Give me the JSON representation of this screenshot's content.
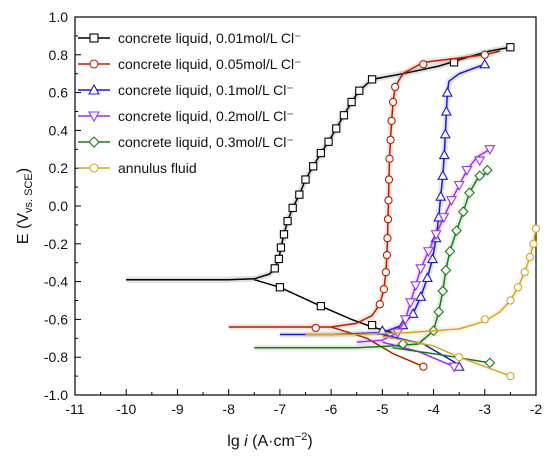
{
  "chart_data": {
    "type": "line",
    "title": "",
    "xlabel": {
      "prefix": "lg ",
      "italic": "i",
      "unit_open": "  (A·cm",
      "unit_sup": "−2",
      "unit_close": ")"
    },
    "ylabel": {
      "main": "E",
      "paren_open": "(V",
      "sub": "vs. SCE",
      "paren_close": ")"
    },
    "xlim": [
      -11,
      -2
    ],
    "ylim": [
      -1.0,
      1.0
    ],
    "xticks": [
      "-11",
      "-10",
      "-9",
      "-8",
      "-7",
      "-6",
      "-5",
      "-4",
      "-3",
      "-2"
    ],
    "yticks": [
      "-1.0",
      "-0.8",
      "-0.6",
      "-0.4",
      "-0.2",
      "0.0",
      "0.2",
      "0.4",
      "0.6",
      "0.8",
      "1.0"
    ],
    "grid": false,
    "legend_position": "top-left",
    "series": [
      {
        "name": "concrete liquid, 0.01mol/L Cl⁻",
        "color": "#000000",
        "marker": "square",
        "points": [
          [
            -10.0,
            -0.39
          ],
          [
            -9.0,
            -0.39
          ],
          [
            -8.0,
            -0.39
          ],
          [
            -7.5,
            -0.385
          ],
          [
            -7.2,
            -0.36
          ],
          [
            -7.1,
            -0.33
          ],
          [
            -7.02,
            -0.28
          ],
          [
            -6.98,
            -0.22
          ],
          [
            -6.92,
            -0.15
          ],
          [
            -6.85,
            -0.08
          ],
          [
            -6.75,
            -0.01
          ],
          [
            -6.62,
            0.06
          ],
          [
            -6.5,
            0.14
          ],
          [
            -6.35,
            0.21
          ],
          [
            -6.2,
            0.28
          ],
          [
            -6.05,
            0.34
          ],
          [
            -5.9,
            0.41
          ],
          [
            -5.75,
            0.48
          ],
          [
            -5.6,
            0.55
          ],
          [
            -5.45,
            0.61
          ],
          [
            -5.2,
            0.67
          ],
          [
            -4.6,
            0.7
          ],
          [
            -3.9,
            0.74
          ],
          [
            -3.3,
            0.79
          ],
          [
            -2.9,
            0.82
          ],
          [
            -2.5,
            0.84
          ]
        ],
        "cathodic": [
          [
            -7.5,
            -0.39
          ],
          [
            -7.0,
            -0.43
          ],
          [
            -6.2,
            -0.53
          ],
          [
            -5.6,
            -0.6
          ],
          [
            -5.2,
            -0.64
          ],
          [
            -4.8,
            -0.67
          ]
        ],
        "marker_points": [
          [
            -7.1,
            -0.33
          ],
          [
            -7.02,
            -0.28
          ],
          [
            -6.98,
            -0.22
          ],
          [
            -6.92,
            -0.15
          ],
          [
            -6.85,
            -0.08
          ],
          [
            -6.75,
            -0.01
          ],
          [
            -6.62,
            0.06
          ],
          [
            -6.5,
            0.14
          ],
          [
            -6.35,
            0.21
          ],
          [
            -6.2,
            0.28
          ],
          [
            -6.05,
            0.34
          ],
          [
            -5.9,
            0.41
          ],
          [
            -5.75,
            0.48
          ],
          [
            -5.6,
            0.55
          ],
          [
            -5.45,
            0.61
          ],
          [
            -5.2,
            0.67
          ],
          [
            -3.6,
            0.76
          ],
          [
            -2.5,
            0.84
          ],
          [
            -7.0,
            -0.43
          ],
          [
            -6.2,
            -0.53
          ],
          [
            -5.2,
            -0.63
          ]
        ]
      },
      {
        "name": "concrete liquid, 0.05mol/L Cl⁻",
        "color": "#b22000",
        "marker": "circle",
        "points": [
          [
            -8.0,
            -0.64
          ],
          [
            -7.0,
            -0.64
          ],
          [
            -6.0,
            -0.64
          ],
          [
            -5.5,
            -0.62
          ],
          [
            -5.2,
            -0.58
          ],
          [
            -5.05,
            -0.52
          ],
          [
            -4.97,
            -0.44
          ],
          [
            -4.93,
            -0.35
          ],
          [
            -4.91,
            -0.26
          ],
          [
            -4.9,
            -0.17
          ],
          [
            -4.89,
            -0.07
          ],
          [
            -4.88,
            0.03
          ],
          [
            -4.87,
            0.14
          ],
          [
            -4.86,
            0.25
          ],
          [
            -4.84,
            0.35
          ],
          [
            -4.82,
            0.45
          ],
          [
            -4.79,
            0.55
          ],
          [
            -4.75,
            0.63
          ],
          [
            -4.6,
            0.7
          ],
          [
            -4.2,
            0.76
          ],
          [
            -3.6,
            0.78
          ],
          [
            -3.0,
            0.8
          ],
          [
            -2.7,
            0.82
          ]
        ],
        "cathodic": [
          [
            -6.0,
            -0.64
          ],
          [
            -5.3,
            -0.7
          ],
          [
            -4.8,
            -0.78
          ],
          [
            -4.2,
            -0.85
          ]
        ],
        "marker_points": [
          [
            -6.3,
            -0.645
          ],
          [
            -5.05,
            -0.52
          ],
          [
            -4.97,
            -0.44
          ],
          [
            -4.93,
            -0.35
          ],
          [
            -4.91,
            -0.26
          ],
          [
            -4.9,
            -0.17
          ],
          [
            -4.89,
            -0.07
          ],
          [
            -4.88,
            0.03
          ],
          [
            -4.87,
            0.14
          ],
          [
            -4.86,
            0.25
          ],
          [
            -4.84,
            0.35
          ],
          [
            -4.82,
            0.45
          ],
          [
            -4.79,
            0.55
          ],
          [
            -4.75,
            0.63
          ],
          [
            -4.2,
            0.75
          ],
          [
            -3.0,
            0.8
          ],
          [
            -4.2,
            -0.85
          ]
        ]
      },
      {
        "name": "concrete liquid, 0.1mol/L Cl⁻",
        "color": "#1a1acc",
        "marker": "triangle-up",
        "points": [
          [
            -7.0,
            -0.68
          ],
          [
            -6.0,
            -0.68
          ],
          [
            -5.0,
            -0.67
          ],
          [
            -4.6,
            -0.63
          ],
          [
            -4.4,
            -0.57
          ],
          [
            -4.25,
            -0.48
          ],
          [
            -4.12,
            -0.38
          ],
          [
            -4.02,
            -0.28
          ],
          [
            -3.95,
            -0.17
          ],
          [
            -3.9,
            -0.06
          ],
          [
            -3.86,
            0.05
          ],
          [
            -3.82,
            0.16
          ],
          [
            -3.79,
            0.27
          ],
          [
            -3.77,
            0.38
          ],
          [
            -3.75,
            0.5
          ],
          [
            -3.73,
            0.6
          ],
          [
            -3.7,
            0.66
          ],
          [
            -3.5,
            0.7
          ],
          [
            -3.2,
            0.73
          ],
          [
            -3.0,
            0.75
          ]
        ],
        "cathodic": [
          [
            -5.0,
            -0.68
          ],
          [
            -4.2,
            -0.73
          ],
          [
            -3.5,
            -0.84
          ]
        ],
        "marker_points": [
          [
            -5.0,
            -0.66
          ],
          [
            -4.6,
            -0.63
          ],
          [
            -4.4,
            -0.57
          ],
          [
            -4.25,
            -0.48
          ],
          [
            -4.12,
            -0.38
          ],
          [
            -4.02,
            -0.28
          ],
          [
            -3.95,
            -0.17
          ],
          [
            -3.9,
            -0.06
          ],
          [
            -3.86,
            0.05
          ],
          [
            -3.82,
            0.16
          ],
          [
            -3.79,
            0.27
          ],
          [
            -3.77,
            0.38
          ],
          [
            -3.75,
            0.5
          ],
          [
            -3.73,
            0.6
          ],
          [
            -3.0,
            0.75
          ],
          [
            -3.5,
            -0.85
          ]
        ]
      },
      {
        "name": "concrete liquid, 0.2mol/L Cl⁻",
        "color": "#9933ee",
        "marker": "triangle-down",
        "points": [
          [
            -5.5,
            -0.72
          ],
          [
            -5.0,
            -0.71
          ],
          [
            -4.7,
            -0.67
          ],
          [
            -4.55,
            -0.6
          ],
          [
            -4.45,
            -0.51
          ],
          [
            -4.35,
            -0.42
          ],
          [
            -4.25,
            -0.33
          ],
          [
            -4.1,
            -0.24
          ],
          [
            -3.95,
            -0.15
          ],
          [
            -3.8,
            -0.06
          ],
          [
            -3.65,
            0.03
          ],
          [
            -3.5,
            0.11
          ],
          [
            -3.35,
            0.19
          ],
          [
            -3.15,
            0.26
          ],
          [
            -2.9,
            0.3
          ]
        ],
        "cathodic": [
          [
            -5.0,
            -0.72
          ],
          [
            -4.3,
            -0.77
          ],
          [
            -3.6,
            -0.85
          ]
        ],
        "marker_points": [
          [
            -4.7,
            -0.67
          ],
          [
            -4.55,
            -0.6
          ],
          [
            -4.45,
            -0.51
          ],
          [
            -4.35,
            -0.42
          ],
          [
            -4.25,
            -0.33
          ],
          [
            -4.1,
            -0.24
          ],
          [
            -3.95,
            -0.15
          ],
          [
            -3.8,
            -0.06
          ],
          [
            -3.65,
            0.03
          ],
          [
            -3.5,
            0.11
          ],
          [
            -3.35,
            0.19
          ],
          [
            -3.1,
            0.24
          ],
          [
            -2.9,
            0.3
          ],
          [
            -3.6,
            -0.85
          ]
        ]
      },
      {
        "name": "concrete liquid, 0.3mol/L Cl⁻",
        "color": "#1a7a1a",
        "marker": "diamond",
        "points": [
          [
            -7.5,
            -0.75
          ],
          [
            -6.5,
            -0.75
          ],
          [
            -5.5,
            -0.75
          ],
          [
            -4.8,
            -0.74
          ],
          [
            -4.3,
            -0.73
          ],
          [
            -4.0,
            -0.66
          ],
          [
            -3.9,
            -0.56
          ],
          [
            -3.82,
            -0.45
          ],
          [
            -3.76,
            -0.34
          ],
          [
            -3.68,
            -0.24
          ],
          [
            -3.55,
            -0.13
          ],
          [
            -3.42,
            -0.03
          ],
          [
            -3.3,
            0.07
          ],
          [
            -3.15,
            0.14
          ],
          [
            -2.95,
            0.18
          ]
        ],
        "cathodic": [
          [
            -4.8,
            -0.75
          ],
          [
            -3.8,
            -0.79
          ],
          [
            -2.9,
            -0.83
          ]
        ],
        "marker_points": [
          [
            -4.6,
            -0.73
          ],
          [
            -4.0,
            -0.66
          ],
          [
            -3.9,
            -0.56
          ],
          [
            -3.82,
            -0.45
          ],
          [
            -3.76,
            -0.34
          ],
          [
            -3.68,
            -0.24
          ],
          [
            -3.55,
            -0.13
          ],
          [
            -3.42,
            -0.03
          ],
          [
            -3.3,
            0.07
          ],
          [
            -3.1,
            0.16
          ],
          [
            -2.95,
            0.19
          ],
          [
            -2.9,
            -0.83
          ]
        ]
      },
      {
        "name": "annulus fluid",
        "color": "#d4a52a",
        "marker": "circle",
        "points": [
          [
            -6.5,
            -0.68
          ],
          [
            -5.5,
            -0.68
          ],
          [
            -4.5,
            -0.67
          ],
          [
            -3.5,
            -0.65
          ],
          [
            -3.0,
            -0.61
          ],
          [
            -2.7,
            -0.56
          ],
          [
            -2.5,
            -0.5
          ],
          [
            -2.35,
            -0.43
          ],
          [
            -2.22,
            -0.35
          ],
          [
            -2.12,
            -0.27
          ],
          [
            -2.05,
            -0.2
          ],
          [
            -2.0,
            -0.12
          ]
        ],
        "cathodic": [
          [
            -5.0,
            -0.69
          ],
          [
            -4.0,
            -0.74
          ],
          [
            -3.5,
            -0.8
          ],
          [
            -3.0,
            -0.85
          ],
          [
            -2.5,
            -0.9
          ]
        ],
        "marker_points": [
          [
            -3.0,
            -0.6
          ],
          [
            -2.5,
            -0.5
          ],
          [
            -2.35,
            -0.43
          ],
          [
            -2.22,
            -0.35
          ],
          [
            -2.12,
            -0.27
          ],
          [
            -2.05,
            -0.2
          ],
          [
            -2.0,
            -0.12
          ],
          [
            -3.5,
            -0.8
          ],
          [
            -2.5,
            -0.9
          ]
        ]
      }
    ]
  }
}
